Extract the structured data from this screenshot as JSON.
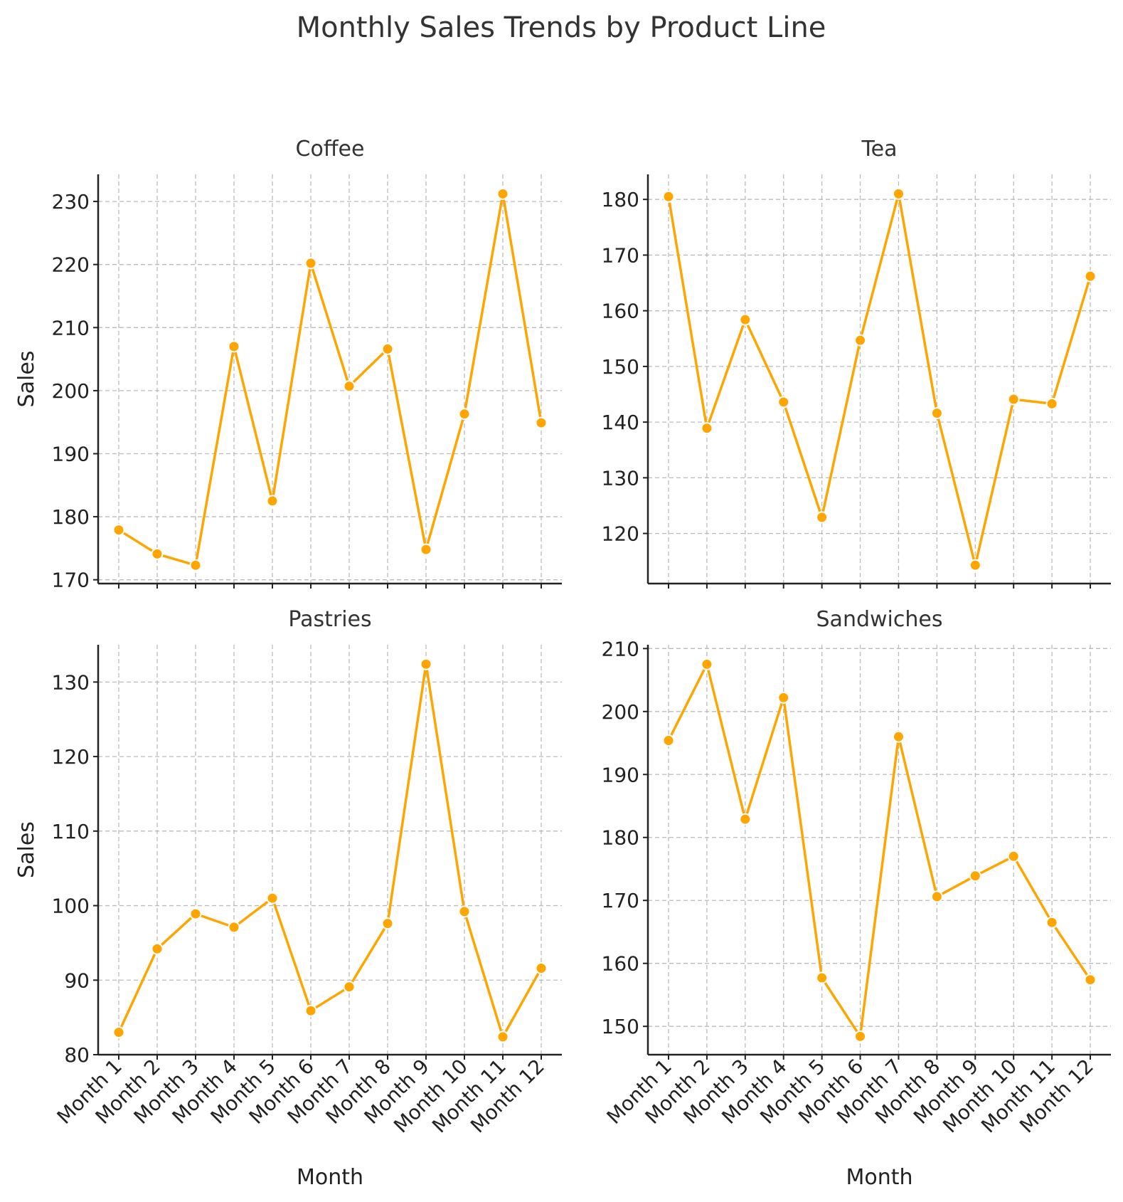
{
  "title": "Monthly Sales Trends by Product Line",
  "colors": {
    "line": "#FFA500"
  },
  "chart_data": [
    {
      "type": "line",
      "title": "Coffee",
      "xlabel": "",
      "ylabel": "Sales",
      "categories": [
        "Month 1",
        "Month 2",
        "Month 3",
        "Month 4",
        "Month 5",
        "Month 6",
        "Month 7",
        "Month 8",
        "Month 9",
        "Month 10",
        "Month 11",
        "Month 12"
      ],
      "values": [
        177.9,
        174.1,
        172.3,
        207.0,
        182.5,
        220.2,
        200.7,
        206.6,
        174.8,
        196.3,
        231.2,
        194.9
      ],
      "ylim": [
        169.4,
        234.3
      ],
      "yticks": [
        170,
        180,
        190,
        200,
        210,
        220,
        230
      ],
      "grid": true
    },
    {
      "type": "line",
      "title": "Tea",
      "xlabel": "",
      "ylabel": "",
      "categories": [
        "Month 1",
        "Month 2",
        "Month 3",
        "Month 4",
        "Month 5",
        "Month 6",
        "Month 7",
        "Month 8",
        "Month 9",
        "Month 10",
        "Month 11",
        "Month 12"
      ],
      "values": [
        180.5,
        138.9,
        158.4,
        143.6,
        122.9,
        154.7,
        181.0,
        141.6,
        114.3,
        144.1,
        143.3,
        166.2
      ],
      "ylim": [
        111.0,
        184.5
      ],
      "yticks": [
        120,
        130,
        140,
        150,
        160,
        170,
        180
      ],
      "grid": true
    },
    {
      "type": "line",
      "title": "Pastries",
      "xlabel": "Month",
      "ylabel": "Sales",
      "categories": [
        "Month 1",
        "Month 2",
        "Month 3",
        "Month 4",
        "Month 5",
        "Month 6",
        "Month 7",
        "Month 8",
        "Month 9",
        "Month 10",
        "Month 11",
        "Month 12"
      ],
      "values": [
        83.0,
        94.2,
        98.9,
        97.1,
        101.0,
        85.9,
        89.1,
        97.6,
        132.4,
        99.2,
        82.4,
        91.6
      ],
      "ylim": [
        80.0,
        135.0
      ],
      "yticks": [
        80,
        90,
        100,
        110,
        120,
        130
      ],
      "grid": true
    },
    {
      "type": "line",
      "title": "Sandwiches",
      "xlabel": "Month",
      "ylabel": "",
      "categories": [
        "Month 1",
        "Month 2",
        "Month 3",
        "Month 4",
        "Month 5",
        "Month 6",
        "Month 7",
        "Month 8",
        "Month 9",
        "Month 10",
        "Month 11",
        "Month 12"
      ],
      "values": [
        195.4,
        207.5,
        182.9,
        202.2,
        157.7,
        148.4,
        196.0,
        170.6,
        173.9,
        177.0,
        166.5,
        157.4
      ],
      "ylim": [
        145.5,
        210.6
      ],
      "yticks": [
        150,
        160,
        170,
        180,
        190,
        200,
        210
      ],
      "grid": true
    }
  ]
}
